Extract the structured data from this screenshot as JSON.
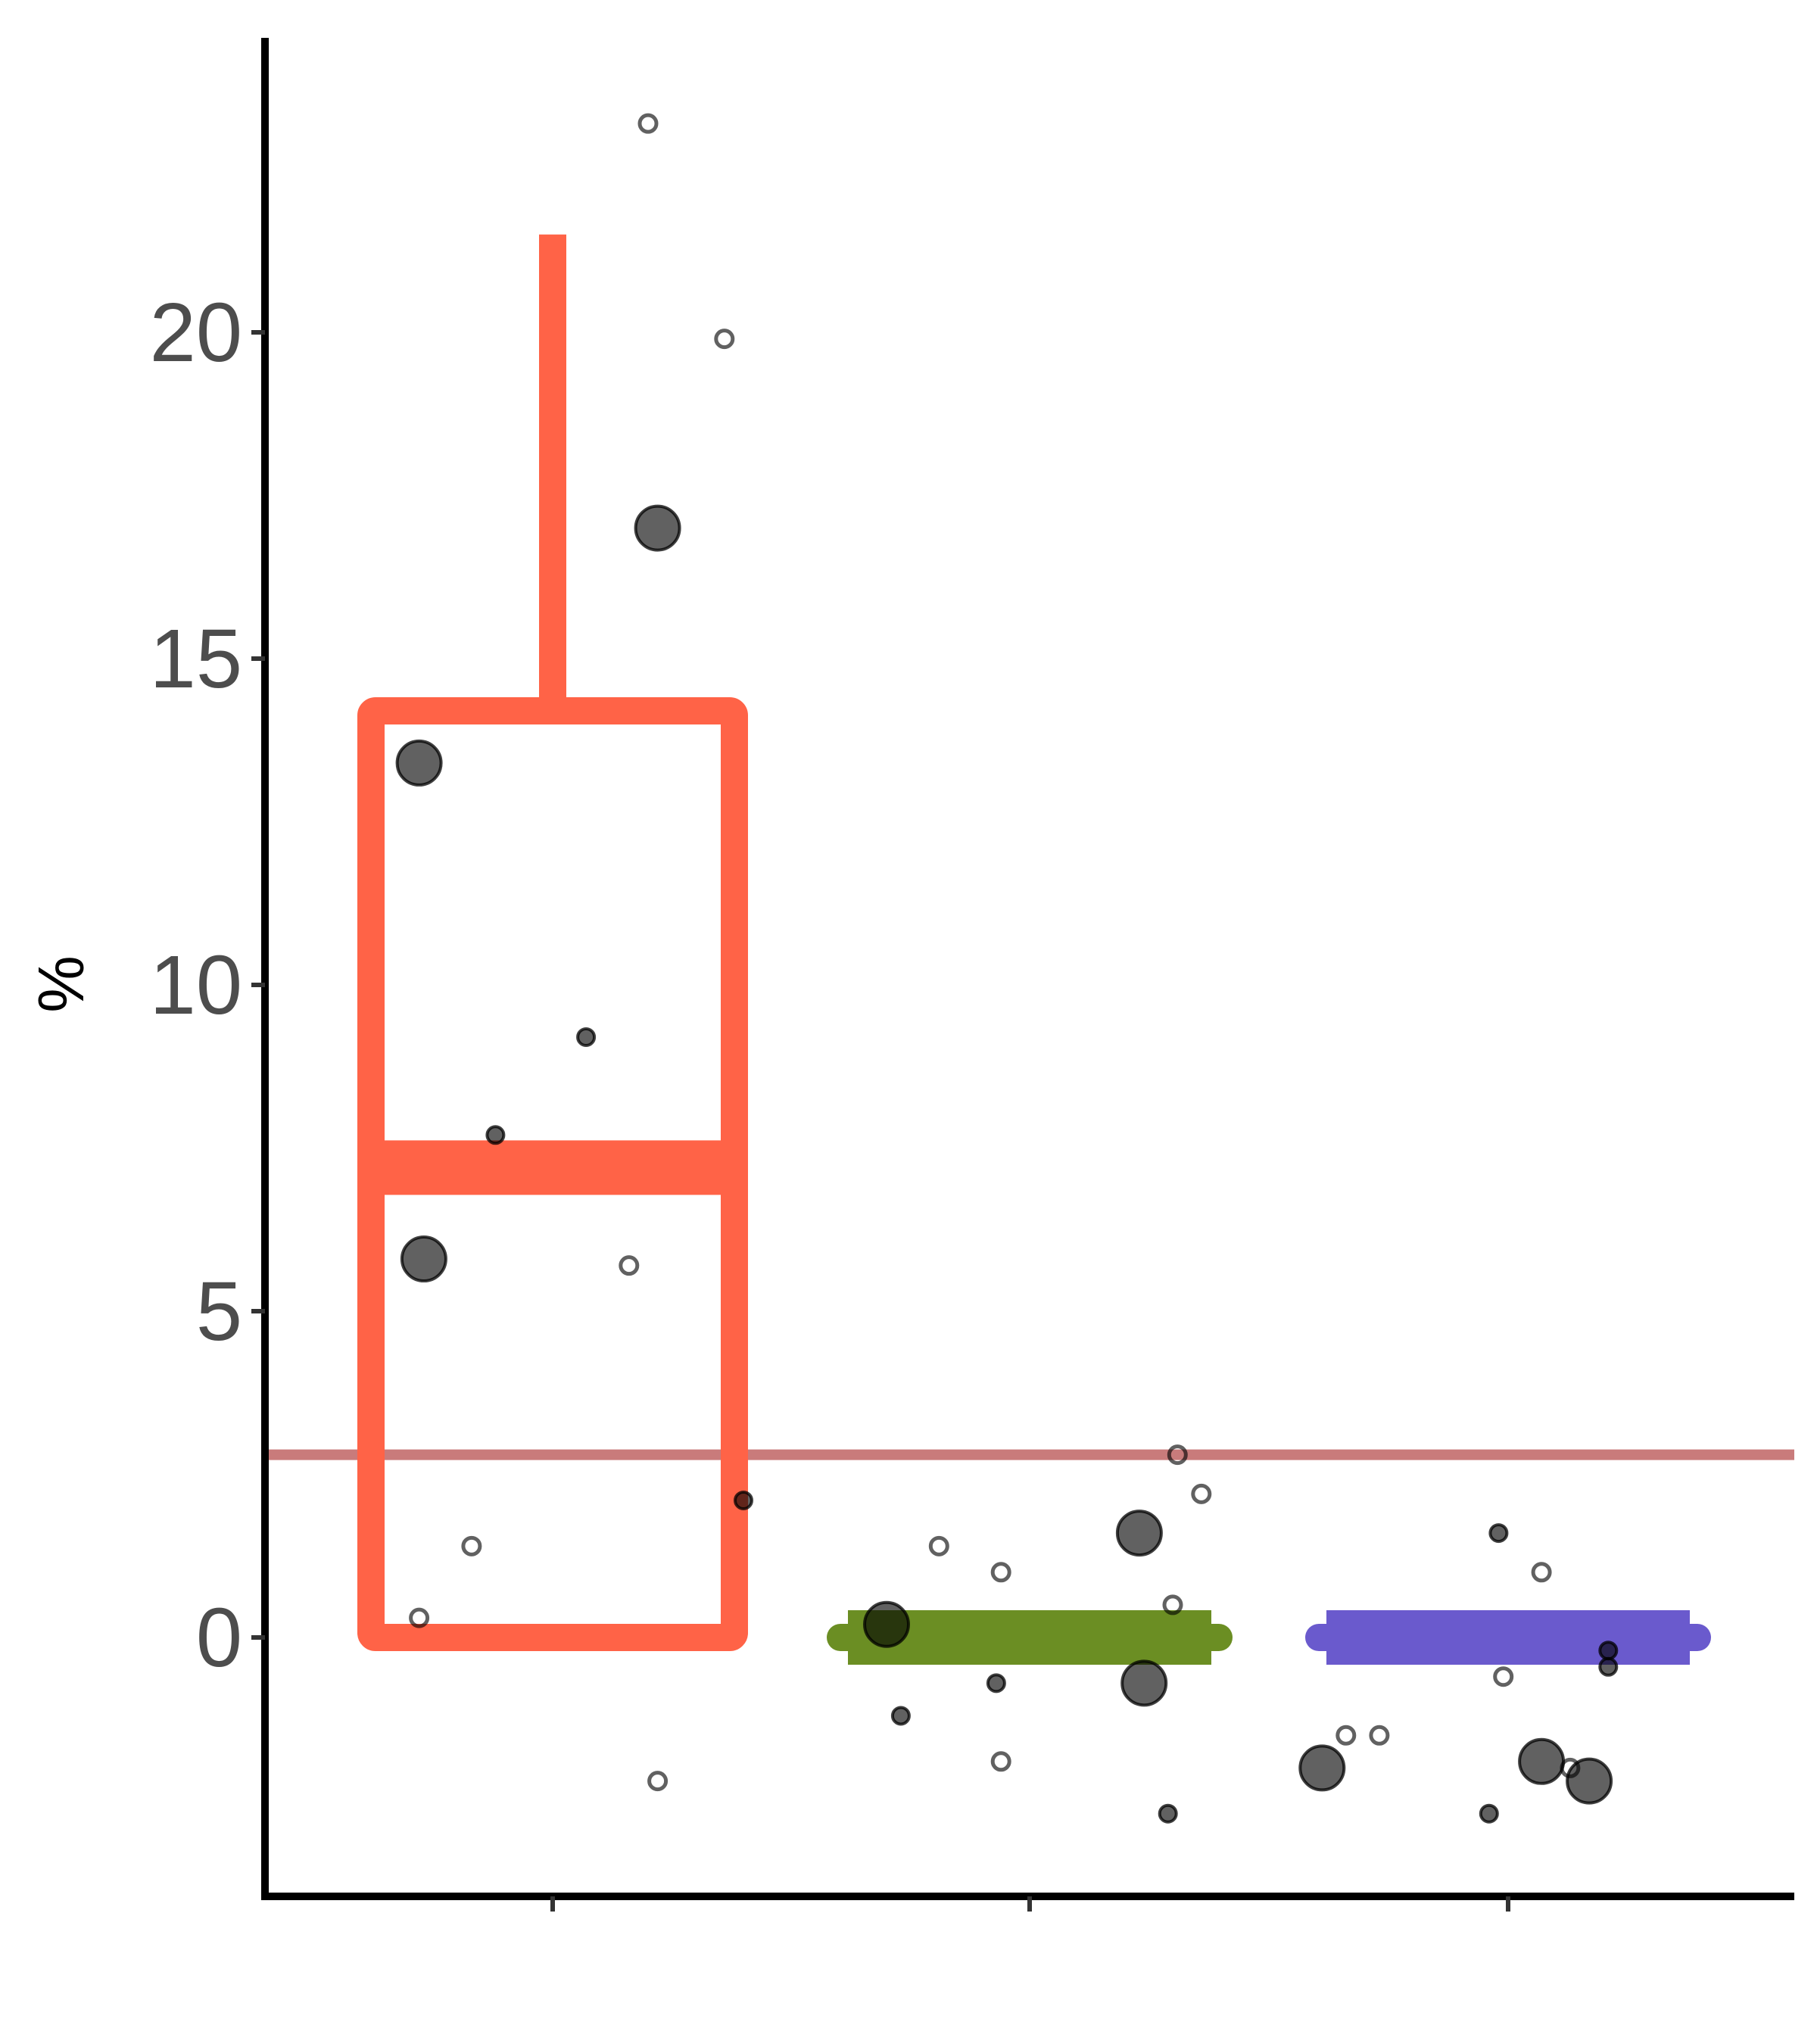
{
  "chart_data": {
    "type": "box",
    "ylabel": "%",
    "xlabel": "",
    "ylim": [
      -4,
      24.5
    ],
    "yticks": [
      0,
      5,
      10,
      15,
      20
    ],
    "categories": [
      "",
      "",
      ""
    ],
    "reference_line": {
      "y": 2.8,
      "color": "#c97b7b"
    },
    "boxes": [
      {
        "color": "#ff6347",
        "q1": 0,
        "median": 7.2,
        "q3": 14.2,
        "whisker_low": 0,
        "whisker_high": 21.5
      },
      {
        "color": "#6b8e23",
        "q1": 0,
        "median": 0,
        "q3": 0,
        "whisker_low": 0,
        "whisker_high": 0
      },
      {
        "color": "#6a5acd",
        "q1": 0,
        "median": 0,
        "q3": 0,
        "whisker_low": 0,
        "whisker_high": 0
      }
    ],
    "points": [
      {
        "group": 0,
        "offset": -0.28,
        "y": 13.4,
        "size": "large",
        "filled": true
      },
      {
        "group": 0,
        "offset": 0.22,
        "y": 17.0,
        "size": "large",
        "filled": true
      },
      {
        "group": 0,
        "offset": -0.27,
        "y": 5.8,
        "size": "large",
        "filled": true
      },
      {
        "group": 0,
        "offset": 0.07,
        "y": 9.2,
        "size": "small",
        "filled": true
      },
      {
        "group": 0,
        "offset": -0.12,
        "y": 7.7,
        "size": "small",
        "filled": true
      },
      {
        "group": 0,
        "offset": 0.4,
        "y": 2.1,
        "size": "small",
        "filled": true
      },
      {
        "group": 0,
        "offset": 0.2,
        "y": 23.2,
        "size": "small",
        "filled": false
      },
      {
        "group": 0,
        "offset": 0.36,
        "y": 19.9,
        "size": "small",
        "filled": false
      },
      {
        "group": 0,
        "offset": 0.16,
        "y": 5.7,
        "size": "small",
        "filled": false
      },
      {
        "group": 0,
        "offset": -0.17,
        "y": 1.4,
        "size": "small",
        "filled": false
      },
      {
        "group": 0,
        "offset": -0.28,
        "y": 0.3,
        "size": "small",
        "filled": false
      },
      {
        "group": 0,
        "offset": 0.22,
        "y": -2.2,
        "size": "small",
        "filled": false
      },
      {
        "group": 1,
        "offset": -0.3,
        "y": 0.2,
        "size": "large",
        "filled": true
      },
      {
        "group": 1,
        "offset": 0.23,
        "y": 1.6,
        "size": "large",
        "filled": true
      },
      {
        "group": 1,
        "offset": 0.24,
        "y": -0.7,
        "size": "large",
        "filled": true
      },
      {
        "group": 1,
        "offset": -0.07,
        "y": -0.7,
        "size": "small",
        "filled": true
      },
      {
        "group": 1,
        "offset": -0.27,
        "y": -1.2,
        "size": "small",
        "filled": true
      },
      {
        "group": 1,
        "offset": 0.29,
        "y": -2.7,
        "size": "small",
        "filled": true
      },
      {
        "group": 1,
        "offset": 0.31,
        "y": 2.8,
        "size": "small",
        "filled": false
      },
      {
        "group": 1,
        "offset": 0.36,
        "y": 2.2,
        "size": "small",
        "filled": false
      },
      {
        "group": 1,
        "offset": -0.19,
        "y": 1.4,
        "size": "small",
        "filled": false
      },
      {
        "group": 1,
        "offset": -0.06,
        "y": 1.0,
        "size": "small",
        "filled": false
      },
      {
        "group": 1,
        "offset": 0.3,
        "y": 0.5,
        "size": "small",
        "filled": false
      },
      {
        "group": 1,
        "offset": -0.06,
        "y": -1.9,
        "size": "small",
        "filled": false
      },
      {
        "group": 2,
        "offset": -0.39,
        "y": -2.0,
        "size": "large",
        "filled": true
      },
      {
        "group": 2,
        "offset": 0.07,
        "y": -1.9,
        "size": "large",
        "filled": true
      },
      {
        "group": 2,
        "offset": 0.17,
        "y": -2.2,
        "size": "large",
        "filled": true
      },
      {
        "group": 2,
        "offset": -0.02,
        "y": 1.6,
        "size": "small",
        "filled": true
      },
      {
        "group": 2,
        "offset": 0.21,
        "y": -0.2,
        "size": "small",
        "filled": true
      },
      {
        "group": 2,
        "offset": 0.21,
        "y": -0.45,
        "size": "small",
        "filled": true
      },
      {
        "group": 2,
        "offset": -0.04,
        "y": -2.7,
        "size": "small",
        "filled": true
      },
      {
        "group": 2,
        "offset": 0.07,
        "y": 1.0,
        "size": "small",
        "filled": false
      },
      {
        "group": 2,
        "offset": -0.01,
        "y": -0.6,
        "size": "small",
        "filled": false
      },
      {
        "group": 2,
        "offset": -0.34,
        "y": -1.5,
        "size": "small",
        "filled": false
      },
      {
        "group": 2,
        "offset": -0.27,
        "y": -1.5,
        "size": "small",
        "filled": false
      },
      {
        "group": 2,
        "offset": 0.13,
        "y": -2.0,
        "size": "small",
        "filled": false
      }
    ],
    "grid": false,
    "legend": "none"
  }
}
